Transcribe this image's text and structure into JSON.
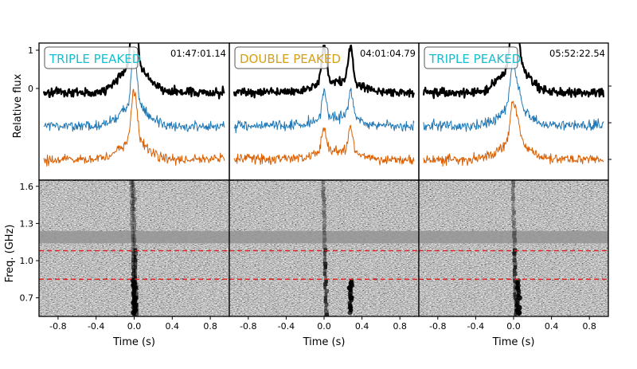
{
  "chart_data": {
    "type": "line",
    "y_label": "Relative flux",
    "y_ticks": [
      "1",
      "0"
    ],
    "spectrogram_y_label": "Freq. (GHz)",
    "spectrogram_y_ticks": [
      "1.6",
      "1.3",
      "1.0",
      "0.7"
    ],
    "spectrogram_ylim": [
      0.55,
      1.65
    ],
    "x_label": "Time (s)",
    "x_ticks": [
      "-0.8",
      "-0.4",
      "0.0",
      "0.4",
      "0.8"
    ],
    "xlim": [
      -1.0,
      1.0
    ],
    "band_edges_ghz": [
      1.08,
      0.85
    ],
    "band_line_color": "#e02020",
    "series_colors": [
      "#000000",
      "#1f77b4",
      "#d95f02"
    ],
    "panels": [
      {
        "label": "TRIPLE PEAKED",
        "label_color": "#17becf",
        "timestamp": "01:47:01.14",
        "peak_times_s": [
          -0.02,
          0.0,
          0.02
        ],
        "spectrogram_burst_times_s": [
          -0.02,
          0.0
        ],
        "spectrogram_lower_band_time_s": 0.0
      },
      {
        "label": "DOUBLE PEAKED",
        "label_color": "#d4a017",
        "timestamp": "04:01:04.79",
        "peak_times_s": [
          0.0,
          0.28
        ],
        "spectrogram_burst_times_s": [
          0.0
        ],
        "spectrogram_lower_band_time_s": 0.28
      },
      {
        "label": "TRIPLE PEAKED",
        "label_color": "#17becf",
        "timestamp": "05:52:22.54",
        "peak_times_s": [
          -0.02,
          0.0,
          0.05
        ],
        "spectrogram_burst_times_s": [
          0.0
        ],
        "spectrogram_lower_band_time_s": 0.05
      }
    ]
  }
}
